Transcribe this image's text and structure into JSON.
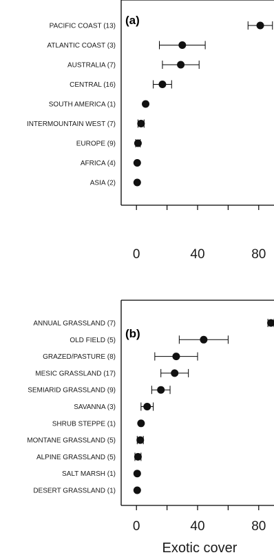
{
  "colors": {
    "point": "#111111",
    "axis": "#000000",
    "text": "#1a1a1a"
  },
  "chart_data": [
    {
      "type": "scatter",
      "panel_label": "(a)",
      "orientation": "horizontal",
      "xlim": [
        -10,
        90
      ],
      "xticks": [
        0,
        40,
        80
      ],
      "xlabel": "",
      "categories": [
        "PACIFIC COAST (13)",
        "ATLANTIC COAST (3)",
        "AUSTRALIA (7)",
        "CENTRAL (16)",
        "SOUTH AMERICA (1)",
        "INTERMOUNTAIN WEST (7)",
        "EUROPE (9)",
        "AFRICA (4)",
        "ASIA (2)"
      ],
      "points": [
        {
          "mean": 81,
          "err": 8
        },
        {
          "mean": 30,
          "err": 15
        },
        {
          "mean": 29,
          "err": 12
        },
        {
          "mean": 17,
          "err": 6
        },
        {
          "mean": 6,
          "err": 0
        },
        {
          "mean": 3,
          "err": 2
        },
        {
          "mean": 1,
          "err": 1.5
        },
        {
          "mean": 0.5,
          "err": 0
        },
        {
          "mean": 0.5,
          "err": 0
        }
      ]
    },
    {
      "type": "scatter",
      "panel_label": "(b)",
      "orientation": "horizontal",
      "xlim": [
        -10,
        90
      ],
      "xticks": [
        0,
        40,
        80
      ],
      "xlabel": "Exotic cover",
      "categories": [
        "ANNUAL GRASSLAND (7)",
        "OLD FIELD (5)",
        "GRAZED/PASTURE (8)",
        "MESIC GRASSLAND (17)",
        "SEMIARID GRASSLAND (9)",
        "SAVANNA (3)",
        "SHRUB STEPPE (1)",
        "MONTANE GRASSLAND (5)",
        "ALPINE GRASSLAND (5)",
        "SALT MARSH (1)",
        "DESERT GRASSLAND (1)"
      ],
      "points": [
        {
          "mean": 88,
          "err": 2
        },
        {
          "mean": 44,
          "err": 16
        },
        {
          "mean": 26,
          "err": 14
        },
        {
          "mean": 25,
          "err": 9
        },
        {
          "mean": 16,
          "err": 6
        },
        {
          "mean": 7,
          "err": 4
        },
        {
          "mean": 3,
          "err": 0
        },
        {
          "mean": 2.5,
          "err": 2
        },
        {
          "mean": 1,
          "err": 2
        },
        {
          "mean": 0.5,
          "err": 0
        },
        {
          "mean": 0.5,
          "err": 0
        }
      ]
    }
  ]
}
